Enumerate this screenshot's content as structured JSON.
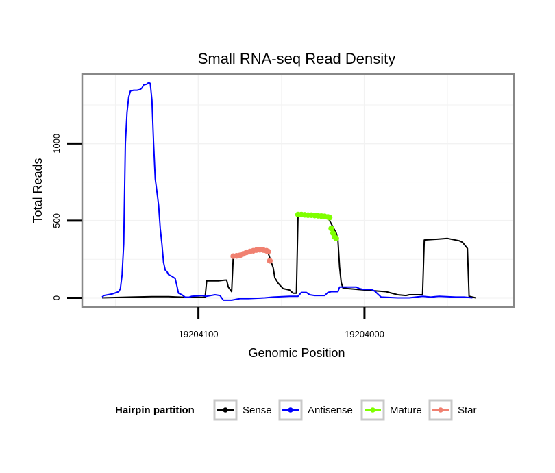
{
  "chart_data": {
    "type": "line",
    "title": "Small RNA-seq Read Density",
    "xlabel": "Genomic Position",
    "ylabel": "Total Reads",
    "xlim": [
      19204170,
      19203910
    ],
    "ylim": [
      -60,
      1450
    ],
    "x_reversed": true,
    "x_ticks": [
      19204100,
      19204000
    ],
    "x_tick_labels": [
      "19204100",
      "19204000"
    ],
    "y_ticks": [
      0,
      500,
      1000
    ],
    "y_tick_labels": [
      "0",
      "500",
      "1000"
    ],
    "grid": true,
    "legend": {
      "title": "Hairpin partition",
      "position": "bottom",
      "entries": [
        "Sense",
        "Antisense",
        "Mature",
        "Star"
      ]
    },
    "series": [
      {
        "name": "Sense",
        "color": "#000000",
        "style": "line",
        "points": [
          [
            19204158,
            0
          ],
          [
            19204140,
            5
          ],
          [
            19204128,
            8
          ],
          [
            19204118,
            8
          ],
          [
            19204108,
            3
          ],
          [
            19204096,
            3
          ],
          [
            19204095,
            110
          ],
          [
            19204088,
            110
          ],
          [
            19204084,
            115
          ],
          [
            19204083,
            115
          ],
          [
            19204082,
            70
          ],
          [
            19204080,
            40
          ],
          [
            19204079,
            270
          ],
          [
            19204072,
            290
          ],
          [
            19204065,
            320
          ],
          [
            19204059,
            310
          ],
          [
            19204058,
            290
          ],
          [
            19204055,
            195
          ],
          [
            19204054,
            130
          ],
          [
            19204052,
            95
          ],
          [
            19204049,
            60
          ],
          [
            19204045,
            50
          ],
          [
            19204044,
            40
          ],
          [
            19204043,
            30
          ],
          [
            19204041,
            30
          ],
          [
            19204040,
            540
          ],
          [
            19204030,
            540
          ],
          [
            19204022,
            520
          ],
          [
            19204017,
            420
          ],
          [
            19204016,
            375
          ],
          [
            19204015,
            200
          ],
          [
            19204014,
            100
          ],
          [
            19204013,
            65
          ],
          [
            19204010,
            60
          ],
          [
            19203999,
            50
          ],
          [
            19203993,
            45
          ],
          [
            19203987,
            40
          ],
          [
            19203980,
            20
          ],
          [
            19203975,
            15
          ],
          [
            19203973,
            20
          ],
          [
            19203965,
            20
          ],
          [
            19203964,
            375
          ],
          [
            19203956,
            380
          ],
          [
            19203950,
            385
          ],
          [
            19203943,
            370
          ],
          [
            19203941,
            360
          ],
          [
            19203938,
            320
          ],
          [
            19203937,
            10
          ],
          [
            19203935,
            5
          ],
          [
            19203933,
            0
          ]
        ]
      },
      {
        "name": "Antisense",
        "color": "#0000ff",
        "style": "line",
        "points": [
          [
            19204158,
            5
          ],
          [
            19204157,
            15
          ],
          [
            19204152,
            25
          ],
          [
            19204148,
            40
          ],
          [
            19204147,
            60
          ],
          [
            19204146,
            150
          ],
          [
            19204145,
            350
          ],
          [
            19204144,
            1000
          ],
          [
            19204143,
            1200
          ],
          [
            19204142,
            1300
          ],
          [
            19204141,
            1340
          ],
          [
            19204139,
            1345
          ],
          [
            19204137,
            1345
          ],
          [
            19204135,
            1350
          ],
          [
            19204134,
            1360
          ],
          [
            19204133,
            1380
          ],
          [
            19204131,
            1385
          ],
          [
            19204130,
            1395
          ],
          [
            19204129,
            1390
          ],
          [
            19204128,
            1280
          ],
          [
            19204127,
            1000
          ],
          [
            19204126,
            770
          ],
          [
            19204125,
            690
          ],
          [
            19204124,
            600
          ],
          [
            19204123,
            450
          ],
          [
            19204122,
            350
          ],
          [
            19204121,
            230
          ],
          [
            19204120,
            180
          ],
          [
            19204119,
            170
          ],
          [
            19204118,
            150
          ],
          [
            19204116,
            140
          ],
          [
            19204114,
            125
          ],
          [
            19204113,
            80
          ],
          [
            19204112,
            30
          ],
          [
            19204110,
            20
          ],
          [
            19204108,
            5
          ],
          [
            19204106,
            3
          ],
          [
            19204104,
            10
          ],
          [
            19204098,
            15
          ],
          [
            19204095,
            10
          ],
          [
            19204090,
            20
          ],
          [
            19204087,
            15
          ],
          [
            19204085,
            -15
          ],
          [
            19204080,
            -15
          ],
          [
            19204075,
            -5
          ],
          [
            19204070,
            -5
          ],
          [
            19204060,
            0
          ],
          [
            19204055,
            5
          ],
          [
            19204045,
            10
          ],
          [
            19204040,
            10
          ],
          [
            19204038,
            35
          ],
          [
            19204035,
            35
          ],
          [
            19204033,
            20
          ],
          [
            19204030,
            15
          ],
          [
            19204024,
            15
          ],
          [
            19204022,
            35
          ],
          [
            19204020,
            40
          ],
          [
            19204016,
            40
          ],
          [
            19204015,
            70
          ],
          [
            19204005,
            70
          ],
          [
            19204003,
            60
          ],
          [
            19204001,
            55
          ],
          [
            19203996,
            55
          ],
          [
            19203994,
            45
          ],
          [
            19203990,
            5
          ],
          [
            19203980,
            0
          ],
          [
            19203973,
            0
          ],
          [
            19203965,
            10
          ],
          [
            19203960,
            5
          ],
          [
            19203955,
            10
          ],
          [
            19203945,
            5
          ],
          [
            19203940,
            5
          ],
          [
            19203935,
            0
          ]
        ]
      },
      {
        "name": "Mature",
        "color": "#7fff00",
        "style": "points",
        "points": [
          [
            19204040,
            540
          ],
          [
            19204038,
            540
          ],
          [
            19204036,
            538
          ],
          [
            19204034,
            536
          ],
          [
            19204032,
            536
          ],
          [
            19204030,
            534
          ],
          [
            19204028,
            532
          ],
          [
            19204026,
            530
          ],
          [
            19204024,
            528
          ],
          [
            19204022,
            524
          ],
          [
            19204021,
            520
          ],
          [
            19204020,
            450
          ],
          [
            19204019,
            420
          ],
          [
            19204018,
            395
          ],
          [
            19204017,
            385
          ]
        ]
      },
      {
        "name": "Star",
        "color": "#f08070",
        "style": "points",
        "points": [
          [
            19204079,
            270
          ],
          [
            19204077,
            272
          ],
          [
            19204075,
            275
          ],
          [
            19204073,
            285
          ],
          [
            19204071,
            295
          ],
          [
            19204069,
            300
          ],
          [
            19204067,
            305
          ],
          [
            19204065,
            310
          ],
          [
            19204063,
            312
          ],
          [
            19204061,
            310
          ],
          [
            19204059,
            305
          ],
          [
            19204058,
            300
          ],
          [
            19204057,
            240
          ]
        ]
      }
    ]
  }
}
